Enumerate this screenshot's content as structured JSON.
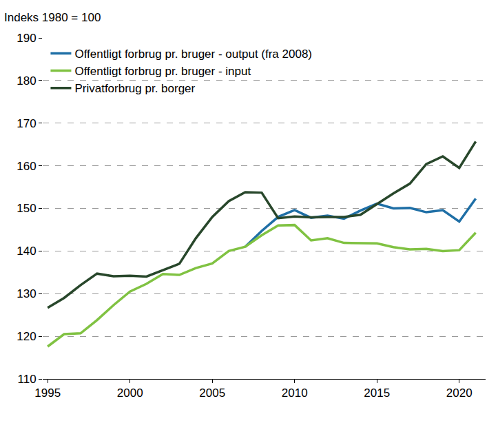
{
  "chart_data": {
    "type": "line",
    "ylabel": "Indeks 1980 = 100",
    "x": [
      1995,
      1996,
      1997,
      1998,
      1999,
      2000,
      2001,
      2002,
      2003,
      2004,
      2005,
      2006,
      2007,
      2008,
      2009,
      2010,
      2011,
      2012,
      2013,
      2014,
      2015,
      2016,
      2017,
      2018,
      2019,
      2020,
      2021
    ],
    "series": [
      {
        "name": "Offentligt forbrug pr. bruger - output (fra 2008)",
        "color": "#1f6fa6",
        "values": [
          null,
          null,
          null,
          null,
          null,
          null,
          null,
          null,
          null,
          null,
          null,
          null,
          141,
          144.7,
          148,
          149.6,
          147.8,
          148.3,
          147.6,
          149.5,
          151.1,
          150,
          150.1,
          149.1,
          149.6,
          146.9,
          152.3
        ]
      },
      {
        "name": "Offentligt forbrug pr. bruger - input",
        "color": "#80c242",
        "values": [
          117.6,
          120.5,
          120.7,
          123.8,
          127.3,
          130.5,
          132.3,
          134.6,
          134.4,
          136,
          137.1,
          140,
          141,
          143.7,
          146,
          146.1,
          142.5,
          143,
          141.9,
          141.9,
          141.8,
          140.9,
          140.4,
          140.5,
          140,
          140.2,
          144.3
        ]
      },
      {
        "name": "Privatforbrug pr. borger",
        "color": "#28472b",
        "values": [
          126.7,
          129,
          132,
          134.7,
          134.1,
          134.2,
          134,
          135.5,
          137,
          143,
          148,
          151.7,
          153.8,
          153.7,
          147.7,
          148.1,
          147.9,
          148,
          148,
          148.5,
          151,
          153.5,
          155.8,
          160.4,
          162.2,
          159.5,
          165.7
        ]
      }
    ],
    "xlim": [
      1994.7,
      2021.6
    ],
    "xticks": [
      1995,
      2000,
      2005,
      2010,
      2015,
      2020
    ],
    "ylim": [
      110,
      190
    ],
    "yticks": [
      110,
      120,
      130,
      140,
      150,
      160,
      170,
      180,
      190
    ],
    "grid": true,
    "legend": "upper left"
  }
}
